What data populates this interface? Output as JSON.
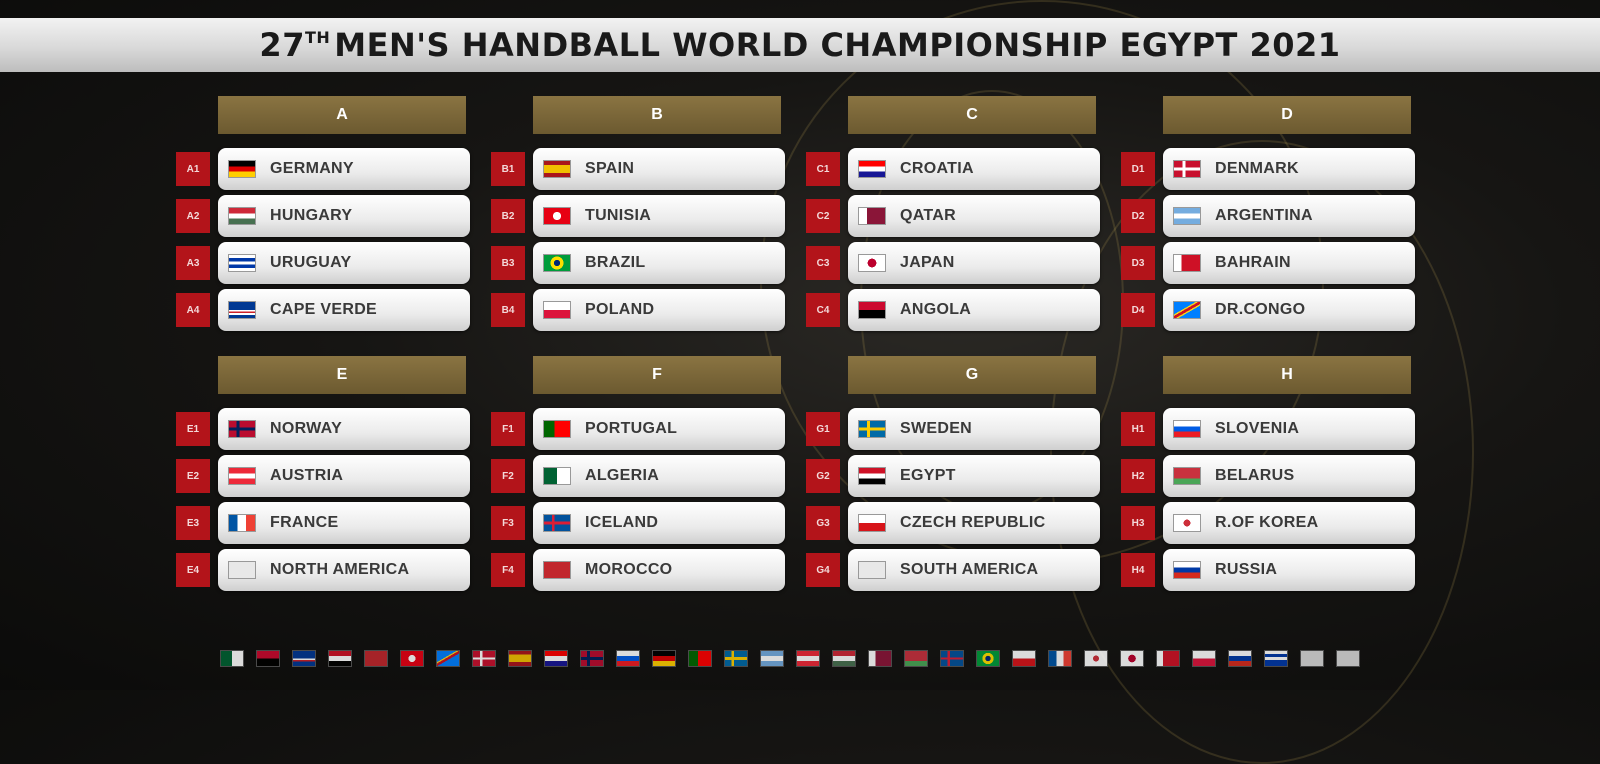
{
  "title": {
    "prefix": "27",
    "suffix": "TH",
    "main": "MEN'S HANDBALL WORLD CHAMPIONSHIP EGYPT 2021"
  },
  "groups": [
    {
      "name": "A",
      "teams": [
        {
          "slot": "A1",
          "name": "GERMANY",
          "flag": "linear-gradient(180deg,#000 0 33%,#dd0000 33% 66%,#ffce00 66%)"
        },
        {
          "slot": "A2",
          "name": "HUNGARY",
          "flag": "linear-gradient(180deg,#ce2939 0 33%,#fff 33% 66%,#477050 66%)"
        },
        {
          "slot": "A3",
          "name": "URUGUAY",
          "flag": "linear-gradient(180deg,#fff 0 20%,#0038a8 20% 40%,#fff 40% 60%,#0038a8 60% 80%,#fff 80%)"
        },
        {
          "slot": "A4",
          "name": "CAPE VERDE",
          "flag": "linear-gradient(180deg,#003893 0 50%,#fff 50% 60%,#cf2027 60% 70%,#fff 70% 80%,#003893 80%)"
        }
      ]
    },
    {
      "name": "B",
      "teams": [
        {
          "slot": "B1",
          "name": "SPAIN",
          "flag": "linear-gradient(180deg,#aa151b 0 25%,#f1bf00 25% 75%,#aa151b 75%)"
        },
        {
          "slot": "B2",
          "name": "TUNISIA",
          "flag": "radial-gradient(circle at 50% 50%,#fff 0 26%,#e70013 27%)"
        },
        {
          "slot": "B3",
          "name": "BRAZIL",
          "flag": "radial-gradient(circle at 50% 50%,#002776 0 20%,#fedf00 21% 42%,#009c3b 43%)"
        },
        {
          "slot": "B4",
          "name": "POLAND",
          "flag": "linear-gradient(180deg,#fff 0 50%,#dc143c 50%)"
        }
      ]
    },
    {
      "name": "C",
      "teams": [
        {
          "slot": "C1",
          "name": "CROATIA",
          "flag": "linear-gradient(180deg,#ff0000 0 33%,#fff 33% 66%,#171796 66%)"
        },
        {
          "slot": "C2",
          "name": "QATAR",
          "flag": "linear-gradient(90deg,#fff 0 30%,#8a1538 30%)"
        },
        {
          "slot": "C3",
          "name": "JAPAN",
          "flag": "radial-gradient(circle at 50% 50%,#bc002d 0 28%,#fff 29%)"
        },
        {
          "slot": "C4",
          "name": "ANGOLA",
          "flag": "linear-gradient(180deg,#cc092f 0 50%,#000 50%)"
        }
      ]
    },
    {
      "name": "D",
      "teams": [
        {
          "slot": "D1",
          "name": "DENMARK",
          "flag": "linear-gradient(90deg,transparent 0 32%,#fff 32% 44%,transparent 44%),linear-gradient(180deg,#c8102e 0 42%,#fff 42% 58%,#c8102e 58%)"
        },
        {
          "slot": "D2",
          "name": "ARGENTINA",
          "flag": "linear-gradient(180deg,#74acdf 0 33%,#fff 33% 66%,#74acdf 66%)"
        },
        {
          "slot": "D3",
          "name": "BAHRAIN",
          "flag": "linear-gradient(90deg,#fff 0 28%,#ce1126 28%)"
        },
        {
          "slot": "D4",
          "name": "DR.CONGO",
          "flag": "linear-gradient(150deg,#007fff 0 40%,#f7d618 40% 45%,#ce1021 45% 55%,#f7d618 55% 60%,#007fff 60%)"
        }
      ]
    },
    {
      "name": "E",
      "teams": [
        {
          "slot": "E1",
          "name": "NORWAY",
          "flag": "linear-gradient(90deg,transparent 0 28%,#00205b 28% 40%,transparent 40%),linear-gradient(180deg,#ba0c2f 0 40%,#00205b 40% 60%,#ba0c2f 60%)"
        },
        {
          "slot": "E2",
          "name": "AUSTRIA",
          "flag": "linear-gradient(180deg,#ed2939 0 33%,#fff 33% 66%,#ed2939 66%)"
        },
        {
          "slot": "E3",
          "name": "FRANCE",
          "flag": "linear-gradient(90deg,#0055a4 0 33%,#fff 33% 66%,#ef4135 66%)"
        },
        {
          "slot": "E4",
          "name": "NORTH AMERICA",
          "flag": "linear-gradient(180deg,#e8e8e8 0 100%)"
        }
      ]
    },
    {
      "name": "F",
      "teams": [
        {
          "slot": "F1",
          "name": "PORTUGAL",
          "flag": "linear-gradient(90deg,#006600 0 40%,#ff0000 40%)"
        },
        {
          "slot": "F2",
          "name": "ALGERIA",
          "flag": "linear-gradient(90deg,#006233 0 50%,#fff 50%)"
        },
        {
          "slot": "F3",
          "name": "ICELAND",
          "flag": "linear-gradient(90deg,transparent 0 30%,#dc1e35 30% 40%,transparent 40%),linear-gradient(180deg,#02529c 0 42%,#dc1e35 42% 58%,#02529c 58%)"
        },
        {
          "slot": "F4",
          "name": "MOROCCO",
          "flag": "linear-gradient(180deg,#c1272d 0 100%)"
        }
      ]
    },
    {
      "name": "G",
      "teams": [
        {
          "slot": "G1",
          "name": "SWEDEN",
          "flag": "linear-gradient(90deg,transparent 0 30%,#fecc00 30% 42%,transparent 42%),linear-gradient(180deg,#006aa7 0 40%,#fecc00 40% 60%,#006aa7 60%)"
        },
        {
          "slot": "G2",
          "name": "EGYPT",
          "flag": "linear-gradient(180deg,#ce1126 0 33%,#fff 33% 66%,#000 66%)"
        },
        {
          "slot": "G3",
          "name": "CZECH REPUBLIC",
          "flag": "linear-gradient(180deg,#fff 0 50%,#d7141a 50%)"
        },
        {
          "slot": "G4",
          "name": "SOUTH AMERICA",
          "flag": "linear-gradient(180deg,#e8e8e8 0 100%)"
        }
      ]
    },
    {
      "name": "H",
      "teams": [
        {
          "slot": "H1",
          "name": "SLOVENIA",
          "flag": "linear-gradient(180deg,#fff 0 33%,#005ce5 33% 66%,#ed1c24 66%)"
        },
        {
          "slot": "H2",
          "name": "BELARUS",
          "flag": "linear-gradient(180deg,#c8313e 0 66%,#4aa657 66%)"
        },
        {
          "slot": "H3",
          "name": "R.OF KOREA",
          "flag": "radial-gradient(circle at 50% 50%,#cd2e3a 0 22%,#fff 23%)"
        },
        {
          "slot": "H4",
          "name": "RUSSIA",
          "flag": "linear-gradient(180deg,#fff 0 33%,#0039a6 33% 66%,#d52b1e 66%)"
        }
      ]
    }
  ],
  "flag_strip": [
    "linear-gradient(90deg,#006233 0 50%,#fff 50%)",
    "linear-gradient(180deg,#cc092f 0 50%,#000 50%)",
    "linear-gradient(180deg,#003893 0 50%,#fff 50% 60%,#cf2027 60% 70%,#003893 70%)",
    "linear-gradient(180deg,#ce1126 0 33%,#fff 33% 66%,#000 66%)",
    "linear-gradient(180deg,#c1272d 0 100%)",
    "radial-gradient(circle,#fff 0 26%,#e70013 27%)",
    "linear-gradient(150deg,#007fff 0 40%,#f7d618 40% 45%,#ce1021 45% 55%,#007fff 55%)",
    "linear-gradient(90deg,transparent 0 32%,#fff 32% 44%,transparent 44%),linear-gradient(180deg,#c8102e 0 42%,#fff 42% 58%,#c8102e 58%)",
    "linear-gradient(180deg,#aa151b 0 25%,#f1bf00 25% 75%,#aa151b 75%)",
    "linear-gradient(180deg,#ff0000 0 33%,#fff 33% 66%,#171796 66%)",
    "linear-gradient(90deg,transparent 0 28%,#00205b 28% 40%,transparent 40%),linear-gradient(180deg,#ba0c2f 0 40%,#00205b 40% 60%,#ba0c2f 60%)",
    "linear-gradient(180deg,#fff 0 33%,#005ce5 33% 66%,#ed1c24 66%)",
    "linear-gradient(180deg,#000 0 33%,#dd0000 33% 66%,#ffce00 66%)",
    "linear-gradient(90deg,#006600 0 40%,#ff0000 40%)",
    "linear-gradient(90deg,transparent 0 30%,#fecc00 30% 42%,transparent 42%),linear-gradient(180deg,#006aa7 0 40%,#fecc00 40% 60%,#006aa7 60%)",
    "linear-gradient(180deg,#74acdf 0 33%,#fff 33% 66%,#74acdf 66%)",
    "linear-gradient(180deg,#ed2939 0 33%,#fff 33% 66%,#ed2939 66%)",
    "linear-gradient(180deg,#ce2939 0 33%,#fff 33% 66%,#477050 66%)",
    "linear-gradient(90deg,#fff 0 30%,#8a1538 30%)",
    "linear-gradient(180deg,#c8313e 0 66%,#4aa657 66%)",
    "linear-gradient(90deg,transparent 0 30%,#dc1e35 30% 40%,transparent 40%),linear-gradient(180deg,#02529c 0 42%,#dc1e35 42% 58%,#02529c 58%)",
    "radial-gradient(circle,#002776 0 20%,#fedf00 21% 42%,#009c3b 43%)",
    "linear-gradient(180deg,#fff 0 50%,#d7141a 50%)",
    "linear-gradient(90deg,#0055a4 0 33%,#fff 33% 66%,#ef4135 66%)",
    "radial-gradient(circle,#cd2e3a 0 22%,#fff 23%)",
    "radial-gradient(circle,#bc002d 0 28%,#fff 29%)",
    "linear-gradient(90deg,#fff 0 28%,#ce1126 28%)",
    "linear-gradient(180deg,#fff 0 50%,#dc143c 50%)",
    "linear-gradient(180deg,#fff 0 33%,#0039a6 33% 66%,#d52b1e 66%)",
    "linear-gradient(180deg,#fff 0 20%,#0038a8 20% 40%,#fff 40% 60%,#0038a8 60%)",
    "linear-gradient(180deg,#d8d8d8 0 100%)",
    "linear-gradient(180deg,#d8d8d8 0 100%)"
  ]
}
